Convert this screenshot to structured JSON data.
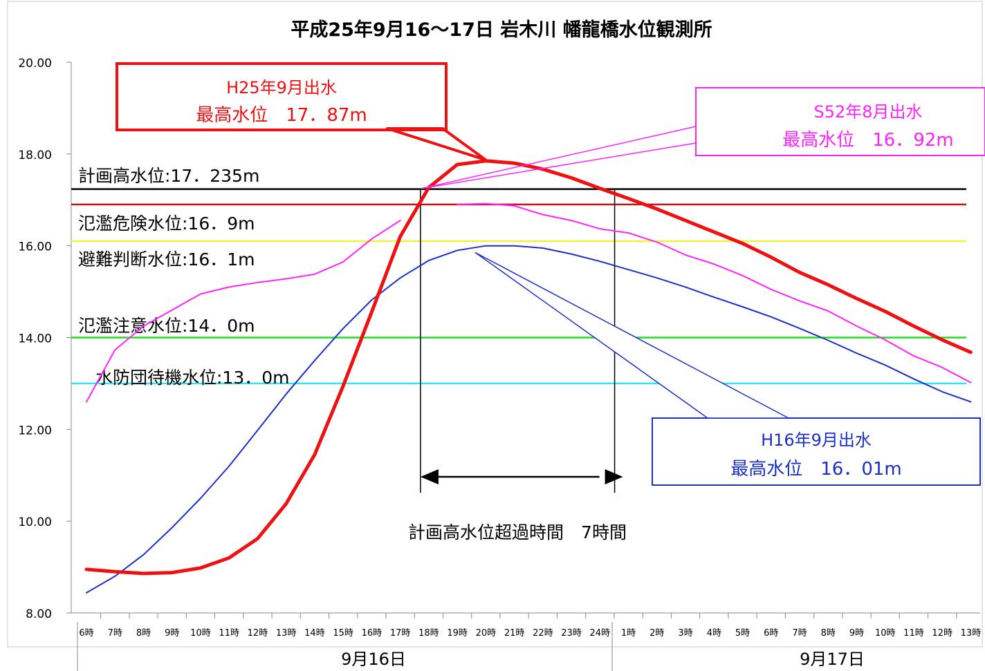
{
  "chart_data": {
    "type": "line",
    "title": "平成25年9月16～17日 岩木川 幡龍橋水位観測所",
    "xlabel": "",
    "ylabel": "",
    "ylim": [
      8,
      20
    ],
    "yticks": [
      "8.00",
      "10.00",
      "12.00",
      "14.00",
      "16.00",
      "18.00",
      "20.00"
    ],
    "categories": [
      "6時",
      "7時",
      "8時",
      "9時",
      "10時",
      "11時",
      "12時",
      "13時",
      "14時",
      "15時",
      "16時",
      "17時",
      "18時",
      "19時",
      "20時",
      "21時",
      "22時",
      "23時",
      "24時",
      "1時",
      "2時",
      "3時",
      "4時",
      "5時",
      "6時",
      "7時",
      "8時",
      "9時",
      "10時",
      "11時",
      "12時",
      "13時"
    ],
    "date_groups": [
      {
        "label": "9月16日",
        "start": 0,
        "end": 18
      },
      {
        "label": "9月17日",
        "start": 19,
        "end": 31
      }
    ],
    "series": [
      {
        "name": "H25年9月出水",
        "color": "#ee1111",
        "width": 5,
        "values": [
          8.95,
          8.9,
          8.86,
          8.88,
          8.98,
          9.2,
          9.62,
          10.38,
          11.45,
          12.95,
          14.56,
          16.2,
          17.27,
          17.77,
          17.85,
          17.8,
          17.67,
          17.48,
          17.25,
          17.03,
          16.8,
          16.55,
          16.3,
          16.05,
          15.75,
          15.42,
          15.15,
          14.85,
          14.57,
          14.25,
          13.95,
          13.68
        ]
      },
      {
        "name": "S52年8月出水",
        "color": "#ff22ff",
        "width": 2,
        "values": [
          12.6,
          13.73,
          14.25,
          14.6,
          14.95,
          15.1,
          15.2,
          15.28,
          15.38,
          15.65,
          16.15,
          16.55,
          null,
          16.9,
          16.92,
          16.87,
          16.68,
          16.55,
          16.37,
          16.28,
          16.08,
          15.8,
          15.6,
          15.35,
          15.05,
          14.8,
          14.58,
          14.25,
          13.95,
          13.6,
          13.35,
          13.02
        ]
      },
      {
        "name": "H16年9月出水",
        "color": "#1a2fc8",
        "width": 2,
        "values": [
          8.44,
          8.8,
          9.27,
          9.86,
          10.5,
          11.2,
          11.98,
          12.77,
          13.5,
          14.2,
          14.82,
          15.3,
          15.68,
          15.9,
          16.0,
          16.0,
          15.95,
          15.82,
          15.66,
          15.48,
          15.3,
          15.1,
          14.88,
          14.67,
          14.45,
          14.2,
          13.94,
          13.66,
          13.4,
          13.1,
          12.82,
          12.6
        ]
      }
    ],
    "reference_lines": [
      {
        "label": "計画高水位:17．235m",
        "value": 17.235,
        "color": "#000000"
      },
      {
        "label": "氾濫危険水位:16．9m",
        "value": 16.9,
        "color": "#cc1111"
      },
      {
        "label": "避難判断水位:16．1m",
        "value": 16.1,
        "color": "#f0f03a"
      },
      {
        "label": "氾濫注意水位:14．0m",
        "value": 14.0,
        "color": "#22dd22"
      },
      {
        "label": "水防団待機水位:13．0m",
        "value": 13.0,
        "color": "#33e5f0"
      }
    ],
    "callouts": [
      {
        "series": "H25年9月出水",
        "line1": "H25年9月出水",
        "line2": "最高水位　17．87m",
        "color": "#ee1111"
      },
      {
        "series": "S52年8月出水",
        "line1": "S52年8月出水",
        "line2": "最高水位　16．92m",
        "color": "#ff22ff"
      },
      {
        "series": "H16年9月出水",
        "line1": "H16年9月出水",
        "line2": "最高水位　16．01m",
        "color": "#1a2fc8"
      }
    ],
    "exceedance": {
      "label": "計画高水位超過時間　7時間",
      "start": 12,
      "end": 19
    }
  }
}
